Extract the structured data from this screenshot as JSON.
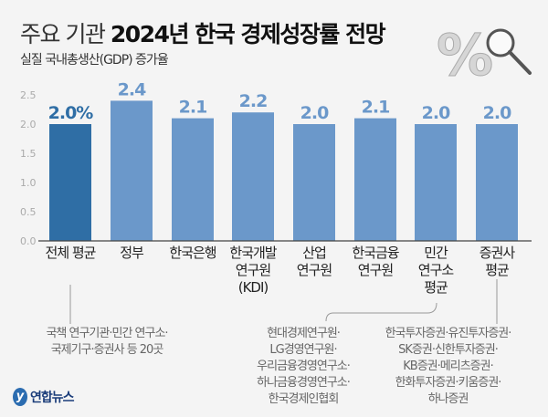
{
  "header": {
    "title_light": "주요 기관",
    "title_bold": "2024년 한국 경제성장률 전망",
    "subtitle": "실질 국내총생산(GDP) 증가율"
  },
  "chart_data": {
    "type": "bar",
    "categories": [
      "전체 평균",
      "정부",
      "한국은행",
      "한국개발\n연구원\n(KDI)",
      "산업\n연구원",
      "한국금융\n연구원",
      "민간\n연구소\n평균",
      "증권사\n평균"
    ],
    "values": [
      2.0,
      2.4,
      2.1,
      2.2,
      2.0,
      2.1,
      2.0,
      2.0
    ],
    "data_labels": [
      "2.0%",
      "2.4",
      "2.1",
      "2.2",
      "2.0",
      "2.1",
      "2.0",
      "2.0"
    ],
    "ylim": [
      0,
      2.5
    ],
    "yticks": [
      "0.0",
      "0.5",
      "1.0",
      "1.5",
      "2.0",
      "2.5"
    ],
    "grid": false,
    "colors": {
      "highlight": "#2f6ea5",
      "bars": "#6b98ca",
      "highlight_label": "#2f6ea5",
      "label": "#6b98ca"
    }
  },
  "notes": {
    "overall": "국책 연구기관·민간 연구소·\n국제기구·증권사 등 20곳",
    "private": "현대경제연구원·\nLG경영연구원·\n우리금융경영연구소·\n하나금융경영연구소·\n한국경제인협회",
    "securities": "한국투자증권·유진투자증권·\nSK증권·신한투자증권·\nKB증권·메리츠증권·\n한화투자증권·키움증권·\n하나증권"
  },
  "logo": {
    "text": "연합뉴스"
  },
  "decoration": {
    "icons": [
      "percent-icon",
      "magnifier-icon"
    ]
  }
}
